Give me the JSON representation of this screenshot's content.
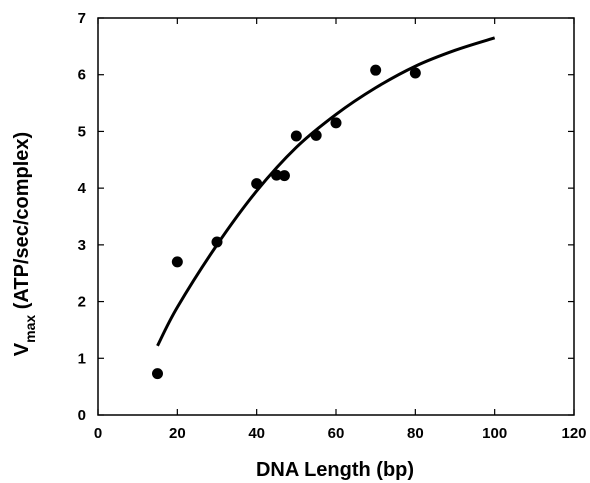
{
  "chart_data": {
    "type": "scatter",
    "xlabel": "DNA Length (bp)",
    "ylabel_main": "V",
    "ylabel_sub": "max",
    "ylabel_rest": " (ATP/sec/complex)",
    "xlim": [
      0,
      120
    ],
    "ylim": [
      0,
      7
    ],
    "x_ticks": [
      0,
      20,
      40,
      60,
      80,
      100,
      120
    ],
    "y_ticks": [
      0,
      1,
      2,
      3,
      4,
      5,
      6,
      7
    ],
    "grid": false,
    "legend": "none",
    "points": [
      {
        "x": 15,
        "y": 0.73
      },
      {
        "x": 20,
        "y": 2.7
      },
      {
        "x": 30,
        "y": 3.05
      },
      {
        "x": 40,
        "y": 4.08
      },
      {
        "x": 45,
        "y": 4.23
      },
      {
        "x": 47,
        "y": 4.22
      },
      {
        "x": 50,
        "y": 4.92
      },
      {
        "x": 55,
        "y": 4.93
      },
      {
        "x": 60,
        "y": 5.15
      },
      {
        "x": 70,
        "y": 6.08
      },
      {
        "x": 80,
        "y": 6.03
      }
    ],
    "fit_curve": {
      "type": "line",
      "points": [
        {
          "x": 15,
          "y": 1.22
        },
        {
          "x": 20,
          "y": 1.9
        },
        {
          "x": 30,
          "y": 3.0
        },
        {
          "x": 40,
          "y": 3.95
        },
        {
          "x": 50,
          "y": 4.72
        },
        {
          "x": 60,
          "y": 5.3
        },
        {
          "x": 70,
          "y": 5.77
        },
        {
          "x": 80,
          "y": 6.15
        },
        {
          "x": 90,
          "y": 6.43
        },
        {
          "x": 100,
          "y": 6.65
        }
      ]
    },
    "colors": {
      "marks": "#000000",
      "axes": "#000000"
    }
  }
}
